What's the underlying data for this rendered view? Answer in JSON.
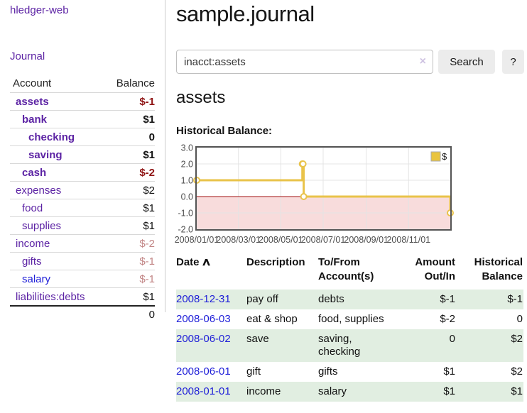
{
  "theme": {
    "purple": "#5c23a4",
    "link_blue": "#1f1fd8",
    "neg_strong": "#8f1414",
    "neg_soft": "#c28686",
    "row_green": "#e1eee1",
    "button_bg": "#ececec",
    "input_border": "#bfbfbf",
    "divider": "#cccccc",
    "text": "#222222"
  },
  "sidebar": {
    "brand": "hledger-web",
    "nav": {
      "journal": "Journal"
    },
    "accounts_header": {
      "account": "Account",
      "balance": "Balance"
    },
    "rows": [
      {
        "name": "assets",
        "depth": 1,
        "balance": "$-1",
        "bold": true,
        "neg": "strong"
      },
      {
        "name": "bank",
        "depth": 2,
        "balance": "$1",
        "bold": true
      },
      {
        "name": "checking",
        "depth": 3,
        "balance": "0",
        "bold": true
      },
      {
        "name": "saving",
        "depth": 3,
        "balance": "$1",
        "bold": true
      },
      {
        "name": "cash",
        "depth": 2,
        "balance": "$-2",
        "bold": true,
        "neg": "strong"
      },
      {
        "name": "expenses",
        "depth": 1,
        "balance": "$2"
      },
      {
        "name": "food",
        "depth": 2,
        "balance": "$1"
      },
      {
        "name": "supplies",
        "depth": 2,
        "balance": "$1"
      },
      {
        "name": "income",
        "depth": 1,
        "balance": "$-2",
        "neg": "soft"
      },
      {
        "name": "gifts",
        "depth": 2,
        "balance": "$-1",
        "neg": "soft"
      },
      {
        "name": "salary",
        "depth": 2,
        "balance": "$-1",
        "neg": "soft",
        "blue": true
      },
      {
        "name": "liabilities:debts",
        "depth": 1,
        "balance": "$1"
      }
    ],
    "total": "0"
  },
  "header": {
    "title": "sample.journal"
  },
  "search": {
    "value": "inacct:assets",
    "clear_icon": "×",
    "button_label": "Search",
    "help_label": "?"
  },
  "account_page": {
    "title": "assets",
    "chart_label": "Historical Balance:"
  },
  "chart_data": {
    "type": "line",
    "step": true,
    "title": "Historical Balance:",
    "series": [
      {
        "name": "$",
        "points": [
          {
            "date": "2008/01/01",
            "day": 0,
            "value": 1
          },
          {
            "date": "2008/06/01",
            "day": 152,
            "value": 2
          },
          {
            "date": "2008/06/02",
            "day": 153,
            "value": 2
          },
          {
            "date": "2008/06/03",
            "day": 154,
            "value": 0
          },
          {
            "date": "2008/12/31",
            "day": 365,
            "value": -1
          }
        ]
      }
    ],
    "x_ticks": [
      {
        "label": "2008/01/01",
        "day": 0
      },
      {
        "label": "2008/03/01",
        "day": 60
      },
      {
        "label": "2008/05/01",
        "day": 121
      },
      {
        "label": "2008/07/01",
        "day": 182
      },
      {
        "label": "2008/09/01",
        "day": 244
      },
      {
        "label": "2008/11/01",
        "day": 305
      }
    ],
    "y_ticks": [
      "3.0",
      "2.0",
      "1.0",
      "0.0",
      "-1.0",
      "-2.0"
    ],
    "xlim_days": [
      0,
      365
    ],
    "ylim": [
      -2,
      3
    ],
    "grid": true,
    "legend": {
      "label": "$",
      "position": "top-right"
    },
    "colors": {
      "line": "#e9c34a",
      "marker_fill": "#ffffff",
      "legend_fill": "#e9c43f",
      "legend_border": "#aaaaaa",
      "grid": "#e4e4e4",
      "border": "#545454",
      "negative_fill": "#f8dcdc",
      "zero_line": "#a21010",
      "tick_text": "#4d4d4d"
    }
  },
  "register": {
    "columns": [
      {
        "line1": "Date",
        "sort": "∧"
      },
      {
        "line1": "Description"
      },
      {
        "line1": "To/From",
        "line2": "Account(s)"
      },
      {
        "line1": "Amount",
        "line2": "Out/In",
        "align": "right"
      },
      {
        "line1": "Historical",
        "line2": "Balance",
        "align": "right"
      }
    ],
    "rows": [
      {
        "date": "2008-12-31",
        "description": "pay off",
        "accounts": "debts",
        "amount": "$-1",
        "balance": "$-1",
        "amount_neg": true,
        "balance_neg": true,
        "shade": true
      },
      {
        "date": "2008-06-03",
        "description": "eat & shop",
        "accounts": "food, supplies",
        "amount": "$-2",
        "balance": "0",
        "amount_neg": true
      },
      {
        "date": "2008-06-02",
        "description": "save",
        "accounts": "saving, checking",
        "amount": "0",
        "balance": "$2",
        "shade": true
      },
      {
        "date": "2008-06-01",
        "description": "gift",
        "accounts": "gifts",
        "amount": "$1",
        "balance": "$2"
      },
      {
        "date": "2008-01-01",
        "description": "income",
        "accounts": "salary",
        "amount": "$1",
        "balance": "$1",
        "shade": true
      }
    ]
  }
}
